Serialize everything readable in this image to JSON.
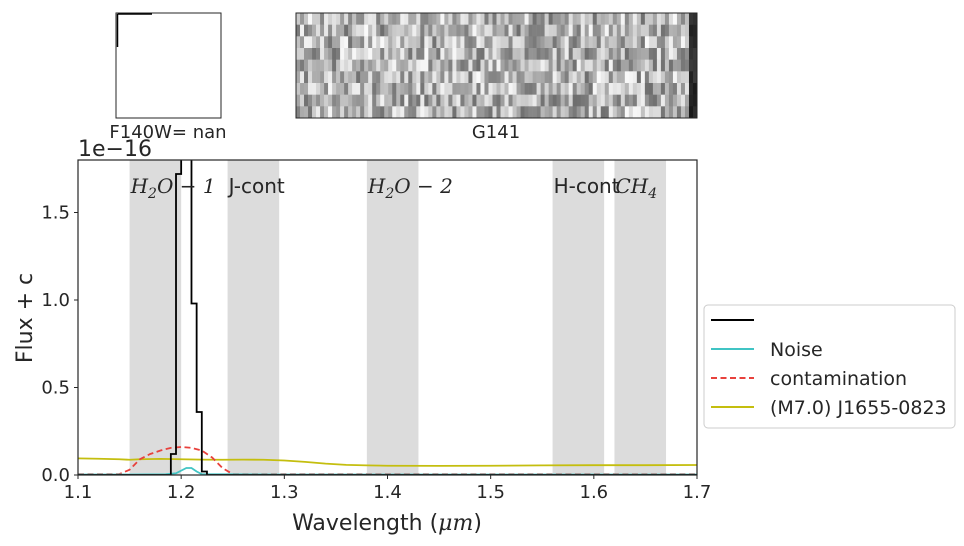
{
  "thumbnail": {
    "label": "F140W= nan"
  },
  "spectrum2d": {
    "label": "G141"
  },
  "chart_data": {
    "type": "line",
    "xlabel_text": "Wavelength (",
    "xlabel_unit": "μm",
    "xlabel_close": ")",
    "ylabel": "Flux + c",
    "offset_text": "1e−16",
    "xlim": [
      1.1,
      1.7
    ],
    "ylim": [
      0,
      1.8
    ],
    "x_ticks": [
      1.1,
      1.2,
      1.3,
      1.4,
      1.5,
      1.6,
      1.7
    ],
    "x_tick_labels": [
      "1.1",
      "1.2",
      "1.3",
      "1.4",
      "1.5",
      "1.6",
      "1.7"
    ],
    "y_ticks": [
      0.0,
      0.5,
      1.0,
      1.5
    ],
    "y_tick_labels": [
      "0.0",
      "0.5",
      "1.0",
      "1.5"
    ],
    "bands": [
      {
        "label_main": "H",
        "label_sub": "2",
        "label_rest": "O − 1",
        "x0": 1.15,
        "x1": 1.2
      },
      {
        "label_main": "J-cont",
        "label_sub": "",
        "label_rest": "",
        "x0": 1.245,
        "x1": 1.295
      },
      {
        "label_main": "H",
        "label_sub": "2",
        "label_rest": "O − 2",
        "x0": 1.38,
        "x1": 1.43
      },
      {
        "label_main": "H-cont",
        "label_sub": "",
        "label_rest": "",
        "x0": 1.56,
        "x1": 1.61
      },
      {
        "label_main": "CH",
        "label_sub": "4",
        "label_rest": "",
        "x0": 1.62,
        "x1": 1.67
      }
    ],
    "series": [
      {
        "key": "data",
        "color": "#000000",
        "style": "step",
        "x": [
          1.1,
          1.15,
          1.185,
          1.19,
          1.195,
          1.2,
          1.205,
          1.21,
          1.215,
          1.22,
          1.225,
          1.3,
          1.4,
          1.5,
          1.6,
          1.7
        ],
        "y": [
          0.0,
          0.0,
          0.0,
          0.12,
          1.72,
          2.6,
          1.98,
          0.98,
          0.36,
          0.02,
          0.0,
          0.0,
          0.0,
          0.0,
          0.0,
          0.0
        ]
      },
      {
        "key": "noise",
        "name": "Noise",
        "color": "#40c4c4",
        "style": "line",
        "x": [
          1.1,
          1.15,
          1.185,
          1.195,
          1.2,
          1.205,
          1.21,
          1.215,
          1.22,
          1.3,
          1.4,
          1.5,
          1.6,
          1.7
        ],
        "y": [
          0.003,
          0.003,
          0.004,
          0.01,
          0.025,
          0.04,
          0.04,
          0.02,
          0.005,
          0.003,
          0.003,
          0.003,
          0.003,
          0.003
        ]
      },
      {
        "key": "contamination",
        "name": "contamination",
        "color": "#e8413c",
        "style": "dashed",
        "x": [
          1.1,
          1.14,
          1.15,
          1.16,
          1.17,
          1.18,
          1.19,
          1.2,
          1.21,
          1.22,
          1.23,
          1.24,
          1.25,
          1.3,
          1.4,
          1.5,
          1.6,
          1.7
        ],
        "y": [
          0.005,
          0.005,
          0.03,
          0.09,
          0.12,
          0.14,
          0.155,
          0.16,
          0.155,
          0.14,
          0.1,
          0.04,
          0.005,
          0.005,
          0.005,
          0.005,
          0.005,
          0.005
        ]
      },
      {
        "key": "template",
        "name": "(M7.0) J1655-0823",
        "color": "#c4be0e",
        "style": "line",
        "x": [
          1.1,
          1.12,
          1.14,
          1.15,
          1.16,
          1.18,
          1.2,
          1.22,
          1.24,
          1.26,
          1.28,
          1.3,
          1.32,
          1.34,
          1.36,
          1.38,
          1.4,
          1.45,
          1.5,
          1.55,
          1.6,
          1.65,
          1.7
        ],
        "y": [
          0.095,
          0.093,
          0.09,
          0.087,
          0.09,
          0.092,
          0.09,
          0.088,
          0.087,
          0.088,
          0.087,
          0.083,
          0.075,
          0.065,
          0.058,
          0.055,
          0.053,
          0.052,
          0.053,
          0.055,
          0.056,
          0.056,
          0.057
        ]
      }
    ],
    "legend": {
      "placement": "right",
      "entries": [
        {
          "key": "data",
          "label": ""
        },
        {
          "key": "noise",
          "label": "Noise"
        },
        {
          "key": "contamination",
          "label": "contamination"
        },
        {
          "key": "template",
          "label": "(M7.0) J1655-0823"
        }
      ]
    }
  }
}
